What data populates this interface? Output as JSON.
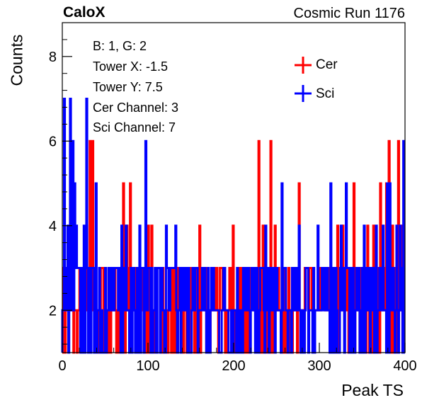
{
  "header": {
    "brand": "CaloX",
    "run_title": "Cosmic Run 1176"
  },
  "info": [
    "B: 1, G: 2",
    "Tower X: -1.5",
    "Tower Y: 7.5",
    "Cer Channel: 3",
    "Sci Channel: 7"
  ],
  "legend": [
    {
      "label": "Cer",
      "color": "#ff0000"
    },
    {
      "label": "Sci",
      "color": "#0000ff"
    }
  ],
  "colors": {
    "cer": "#ff0000",
    "sci": "#0000ff",
    "axis": "#000000"
  },
  "chart_data": {
    "type": "histogram",
    "xlabel": "Peak TS",
    "ylabel": "Counts",
    "xlim": [
      0,
      400
    ],
    "ylim": [
      1,
      8.8
    ],
    "xticks": [
      0,
      100,
      200,
      300,
      400
    ],
    "yticks": [
      2,
      4,
      6,
      8
    ],
    "grid": false,
    "legend_position": "top-right",
    "series": [
      {
        "name": "Cer",
        "color": "#ff0000",
        "peaks": [
          [
            20,
            3
          ],
          [
            28,
            4
          ],
          [
            32,
            6
          ],
          [
            35,
            6
          ],
          [
            37,
            3
          ],
          [
            46,
            3
          ],
          [
            55,
            3
          ],
          [
            61,
            3
          ],
          [
            67,
            3
          ],
          [
            71,
            5
          ],
          [
            75,
            4
          ],
          [
            79,
            5
          ],
          [
            86,
            3
          ],
          [
            100,
            4
          ],
          [
            104,
            4
          ],
          [
            117,
            3
          ],
          [
            138,
            3
          ],
          [
            160,
            4
          ],
          [
            184,
            3
          ],
          [
            199,
            4
          ],
          [
            223,
            3
          ],
          [
            229,
            6
          ],
          [
            234,
            4
          ],
          [
            243,
            6
          ],
          [
            248,
            4
          ],
          [
            264,
            3
          ],
          [
            270,
            3
          ],
          [
            276,
            5
          ],
          [
            283,
            3
          ],
          [
            292,
            3
          ],
          [
            303,
            3
          ],
          [
            321,
            4
          ],
          [
            327,
            4
          ],
          [
            340,
            5
          ],
          [
            350,
            3
          ],
          [
            356,
            4
          ],
          [
            363,
            4
          ],
          [
            371,
            5
          ],
          [
            378,
            5
          ],
          [
            381,
            6
          ],
          [
            385,
            4
          ],
          [
            389,
            3
          ],
          [
            392,
            6
          ],
          [
            396,
            4
          ]
        ]
      },
      {
        "name": "Sci",
        "color": "#0000ff",
        "peaks": [
          [
            2,
            7
          ],
          [
            6,
            4
          ],
          [
            9,
            7
          ],
          [
            12,
            6
          ],
          [
            14,
            5
          ],
          [
            16,
            4
          ],
          [
            22,
            3
          ],
          [
            25,
            4
          ],
          [
            28,
            7
          ],
          [
            31,
            3
          ],
          [
            39,
            5
          ],
          [
            43,
            3
          ],
          [
            50,
            3
          ],
          [
            58,
            3
          ],
          [
            64,
            3
          ],
          [
            69,
            4
          ],
          [
            74,
            4
          ],
          [
            80,
            3
          ],
          [
            83,
            3
          ],
          [
            87,
            3
          ],
          [
            90,
            4
          ],
          [
            93,
            3
          ],
          [
            97,
            6
          ],
          [
            101,
            3
          ],
          [
            108,
            3
          ],
          [
            112,
            3
          ],
          [
            121,
            4
          ],
          [
            126,
            3
          ],
          [
            132,
            4
          ],
          [
            141,
            3
          ],
          [
            147,
            3
          ],
          [
            153,
            3
          ],
          [
            166,
            3
          ],
          [
            174,
            3
          ],
          [
            189,
            3
          ],
          [
            211,
            3
          ],
          [
            227,
            3
          ],
          [
            233,
            3
          ],
          [
            237,
            4
          ],
          [
            240,
            3
          ],
          [
            245,
            3
          ],
          [
            250,
            3
          ],
          [
            256,
            5
          ],
          [
            260,
            3
          ],
          [
            268,
            3
          ],
          [
            276,
            4
          ],
          [
            286,
            3
          ],
          [
            293,
            3
          ],
          [
            298,
            4
          ],
          [
            309,
            3
          ],
          [
            313,
            5
          ],
          [
            319,
            3
          ],
          [
            325,
            4
          ],
          [
            331,
            5
          ],
          [
            336,
            3
          ],
          [
            344,
            3
          ],
          [
            352,
            4
          ],
          [
            358,
            3
          ],
          [
            366,
            4
          ],
          [
            370,
            3
          ],
          [
            374,
            4
          ],
          [
            379,
            5
          ],
          [
            382,
            5
          ],
          [
            386,
            3
          ],
          [
            390,
            4
          ],
          [
            394,
            4
          ],
          [
            398,
            6
          ]
        ]
      }
    ]
  }
}
